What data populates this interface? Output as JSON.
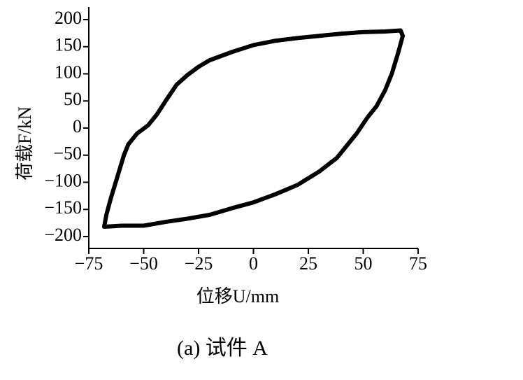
{
  "chart_data": {
    "type": "line",
    "xlabel": "位移U/mm",
    "ylabel": "荷载F/kN",
    "caption": "(a)  试件 A",
    "x": [
      67,
      68,
      66,
      63,
      60,
      56,
      52,
      47,
      43,
      38,
      30,
      20,
      10,
      0,
      -10,
      -20,
      -30,
      -40,
      -50,
      -60,
      -68,
      -67,
      -65,
      -62,
      -59,
      -57,
      -53,
      -48,
      -44,
      -40,
      -35,
      -30,
      -25,
      -20,
      -10,
      0,
      10,
      20,
      30,
      40,
      50,
      60,
      67
    ],
    "series": [
      {
        "color": "#000000",
        "values": [
          180,
          170,
          140,
          100,
          70,
          40,
          20,
          -10,
          -30,
          -55,
          -80,
          -105,
          -122,
          -137,
          -148,
          -160,
          -167,
          -173,
          -180,
          -180,
          -182,
          -160,
          -130,
          -90,
          -50,
          -30,
          -10,
          5,
          25,
          50,
          80,
          98,
          113,
          125,
          140,
          153,
          161,
          166,
          170,
          174,
          177,
          178,
          180
        ]
      }
    ],
    "xlim": [
      -75,
      75
    ],
    "xticks": [
      {
        "value": -75,
        "label": "−75"
      },
      {
        "value": -50,
        "label": "−50"
      },
      {
        "value": -25,
        "label": "−25"
      },
      0,
      25,
      50,
      75
    ],
    "ylim": [
      -200,
      200
    ],
    "yticks": [
      {
        "value": -200,
        "label": "−200"
      },
      {
        "value": -150,
        "label": "−150"
      },
      {
        "value": -100,
        "label": "−100"
      },
      {
        "value": -50,
        "label": "−50"
      },
      0,
      50,
      100,
      150,
      200
    ]
  }
}
